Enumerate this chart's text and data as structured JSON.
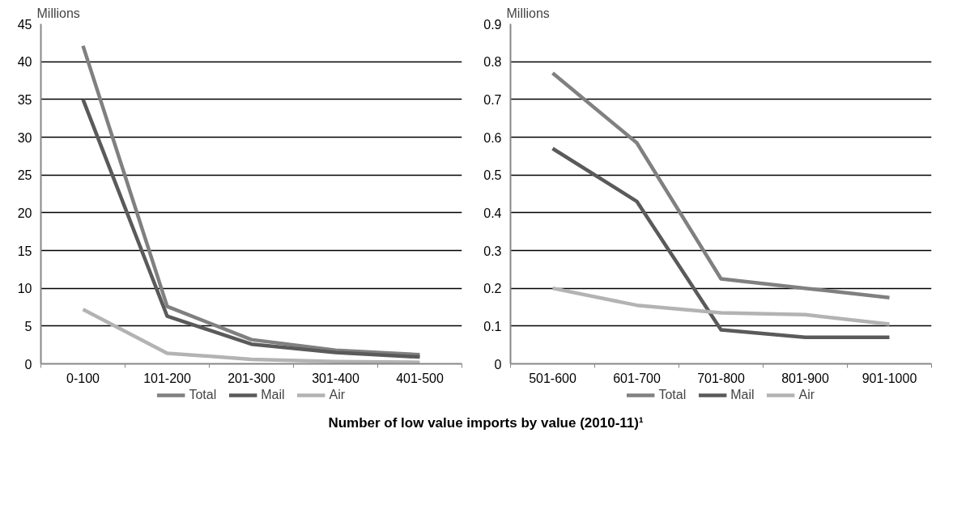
{
  "chart_data": [
    {
      "type": "line",
      "title": "Number of low value imports by value (2010-11)¹",
      "ylabel": "Millions",
      "categories": [
        "0-100",
        "101-200",
        "201-300",
        "301-400",
        "401-500"
      ],
      "ylim": [
        0,
        45
      ],
      "yticks": [
        0,
        5,
        10,
        15,
        20,
        25,
        30,
        35,
        40,
        45
      ],
      "grid": "y",
      "legend": "bottom",
      "marker": "none",
      "line_style": "solid",
      "series": [
        {
          "name": "Total",
          "color": "#808080",
          "values": [
            42.1,
            7.6,
            3.2,
            1.8,
            1.2
          ]
        },
        {
          "name": "Mail",
          "color": "#5a5a5a",
          "values": [
            35,
            6.3,
            2.6,
            1.5,
            0.9
          ]
        },
        {
          "name": "Air",
          "color": "#b3b3b3",
          "values": [
            7.2,
            1.4,
            0.6,
            0.3,
            0.2
          ]
        }
      ]
    },
    {
      "type": "line",
      "ylabel": "Millions",
      "categories": [
        "501-600",
        "601-700",
        "701-800",
        "801-900",
        "901-1000"
      ],
      "ylim": [
        0,
        0.9
      ],
      "yticks": [
        0,
        0.1,
        0.2,
        0.3,
        0.4,
        0.5,
        0.6,
        0.7,
        0.8,
        0.9
      ],
      "grid": "y",
      "legend": "bottom",
      "marker": "none",
      "line_style": "solid",
      "series": [
        {
          "name": "Total",
          "color": "#808080",
          "values": [
            0.77,
            0.585,
            0.225,
            0.2,
            0.175
          ]
        },
        {
          "name": "Mail",
          "color": "#5a5a5a",
          "values": [
            0.57,
            0.43,
            0.09,
            0.07,
            0.07
          ]
        },
        {
          "name": "Air",
          "color": "#b3b3b3",
          "values": [
            0.2,
            0.155,
            0.135,
            0.13,
            0.105
          ]
        }
      ]
    }
  ]
}
